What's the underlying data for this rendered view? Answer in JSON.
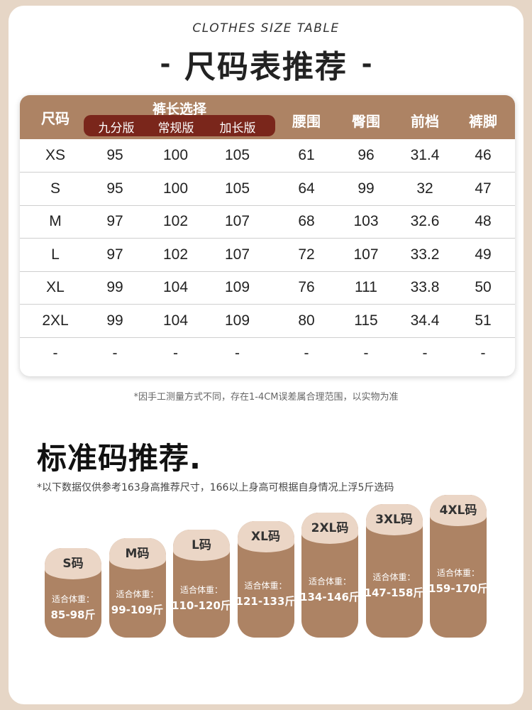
{
  "header": {
    "subtitle": "CLOTHES SIZE TABLE",
    "dash_left": "-",
    "title": "尺码表推荐",
    "dash_right": "-"
  },
  "table": {
    "col_size": "尺码",
    "group_label": "裤长选择",
    "sub_columns": [
      "九分版",
      "常规版",
      "加长版"
    ],
    "other_columns": [
      "腰围",
      "臀围",
      "前档",
      "裤脚"
    ],
    "rows": [
      [
        "XS",
        "95",
        "100",
        "105",
        "61",
        "96",
        "31.4",
        "46"
      ],
      [
        "S",
        "95",
        "100",
        "105",
        "64",
        "99",
        "32",
        "47"
      ],
      [
        "M",
        "97",
        "102",
        "107",
        "68",
        "103",
        "32.6",
        "48"
      ],
      [
        "L",
        "97",
        "102",
        "107",
        "72",
        "107",
        "33.2",
        "49"
      ],
      [
        "XL",
        "99",
        "104",
        "109",
        "76",
        "111",
        "33.8",
        "50"
      ],
      [
        "2XL",
        "99",
        "104",
        "109",
        "80",
        "115",
        "34.4",
        "51"
      ],
      [
        "-",
        "-",
        "-",
        "-",
        "-",
        "-",
        "-",
        "-"
      ]
    ]
  },
  "note_measure": "*因手工测量方式不同，存在1-4CM误差属合理范围，以实物为准",
  "recommend": {
    "title": "标准码推荐.",
    "note": "*以下数据仅供参考163身高推荐尺寸，166以上身高可根据自身情况上浮5斤选码",
    "weight_label": "适合体重：",
    "sizes": [
      {
        "size": "S码",
        "weight": "85-98斤"
      },
      {
        "size": "M码",
        "weight": "99-109斤"
      },
      {
        "size": "L码",
        "weight": "110-120斤"
      },
      {
        "size": "XL码",
        "weight": "121-133斤"
      },
      {
        "size": "2XL码",
        "weight": "134-146斤"
      },
      {
        "size": "3XL码",
        "weight": "147-158斤"
      },
      {
        "size": "4XL码",
        "weight": "159-170斤"
      }
    ]
  },
  "colors": {
    "background": "#e6d6c6",
    "header_brown": "#ad8364",
    "sub_header_red": "#7a261b",
    "pill_top": "#ebd6c6"
  }
}
